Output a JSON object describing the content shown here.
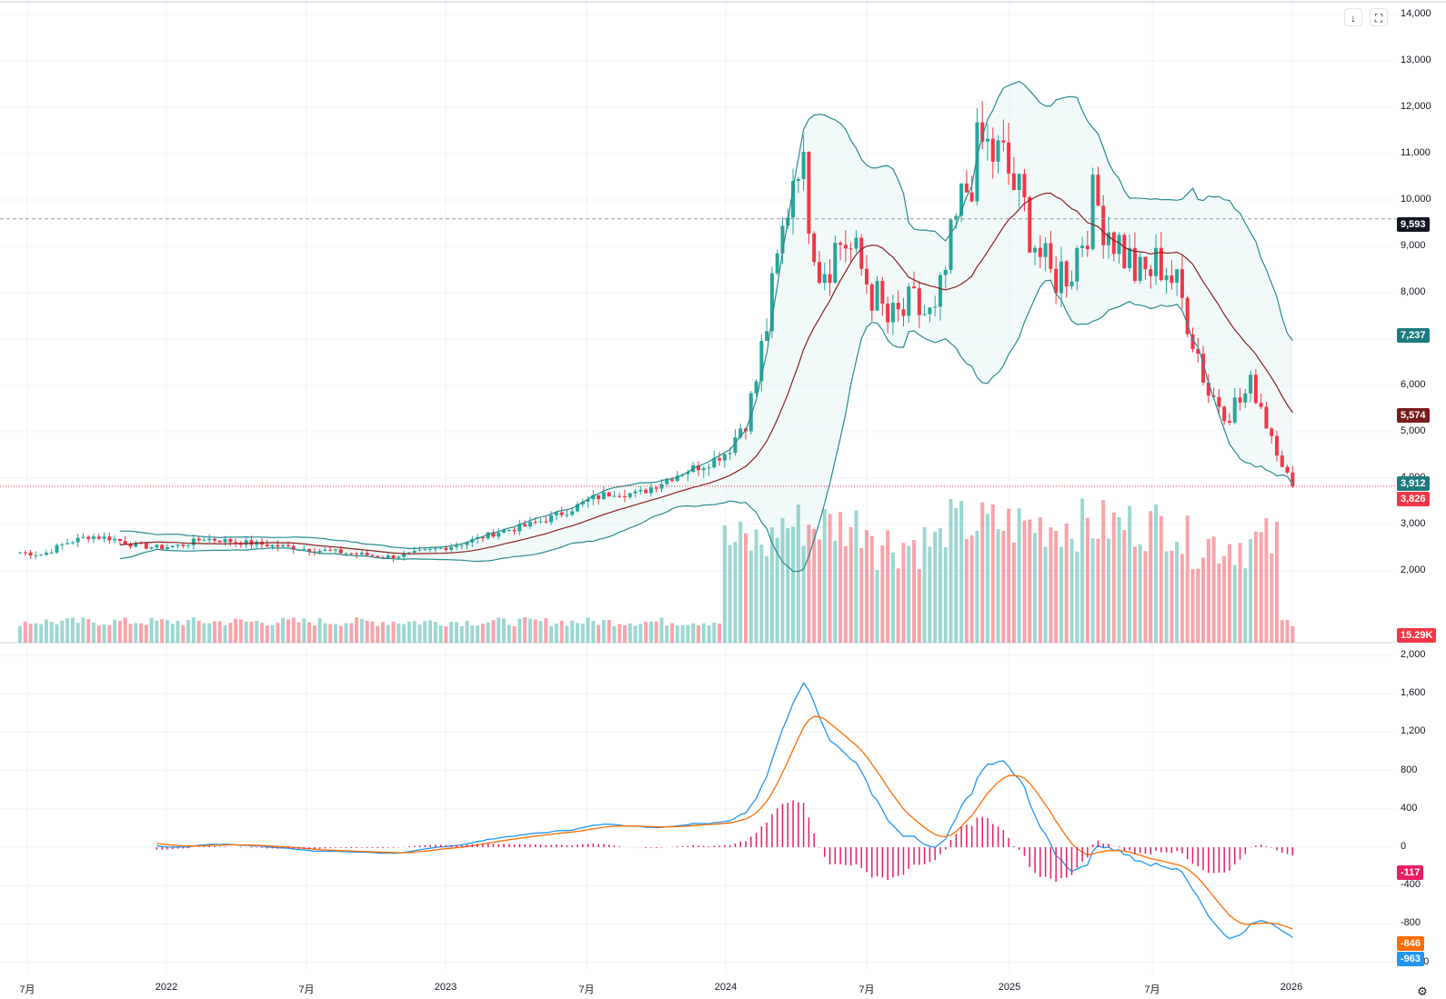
{
  "toolbar": {
    "download_icon": "↓",
    "fullscreen_icon": "⛶"
  },
  "colors": {
    "up": "#26a69a",
    "down": "#f23645",
    "bb": "#2a8a8f",
    "ma": "#8b1e1e",
    "macd": "#2196f3",
    "signal": "#ff6d00",
    "hist": "#e91e63"
  },
  "axis": {
    "price_ticks": [
      "14,000",
      "13,000",
      "12,000",
      "11,000",
      "10,000",
      "9,000",
      "8,000",
      "7,000",
      "6,000",
      "5,000",
      "4,000",
      "3,000",
      "2,000"
    ],
    "macd_ticks": [
      "2,000",
      "1,600",
      "1,200",
      "800",
      "400",
      "0",
      "-400",
      "-800",
      "-1,200"
    ],
    "time_labels": [
      "7月",
      "2022",
      "7月",
      "2023",
      "7月",
      "2024",
      "7月",
      "2025",
      "7月",
      "2026"
    ]
  },
  "tags": {
    "dashed_level": "9,593",
    "bb_upper": "7,237",
    "ma": "5,574",
    "bb_lower": "3,912",
    "last_price": "3,826",
    "volume": "15.29K",
    "macd_hist": "-117",
    "signal": "-846",
    "macd": "-963"
  },
  "chart_data": {
    "type": "candlestick",
    "frequency": "weekly",
    "price_range": [
      1000,
      14000
    ],
    "reference_level": 9593,
    "last_price": 3826,
    "close_series": [
      [
        "2021-06-01",
        2400
      ],
      [
        "2021-07-01",
        2350
      ],
      [
        "2021-08-01",
        2600
      ],
      [
        "2021-09-01",
        2750
      ],
      [
        "2021-10-01",
        2700
      ],
      [
        "2021-11-01",
        2550
      ],
      [
        "2021-12-01",
        2500
      ],
      [
        "2022-01-01",
        2550
      ],
      [
        "2022-02-01",
        2700
      ],
      [
        "2022-03-01",
        2650
      ],
      [
        "2022-04-01",
        2600
      ],
      [
        "2022-05-01",
        2550
      ],
      [
        "2022-06-01",
        2500
      ],
      [
        "2022-07-01",
        2450
      ],
      [
        "2022-08-01",
        2400
      ],
      [
        "2022-09-01",
        2350
      ],
      [
        "2022-10-01",
        2300
      ],
      [
        "2022-11-01",
        2350
      ],
      [
        "2022-12-01",
        2450
      ],
      [
        "2023-01-01",
        2550
      ],
      [
        "2023-02-01",
        2700
      ],
      [
        "2023-03-01",
        2850
      ],
      [
        "2023-04-01",
        2950
      ],
      [
        "2023-05-01",
        3100
      ],
      [
        "2023-06-01",
        3300
      ],
      [
        "2023-07-01",
        3550
      ],
      [
        "2023-08-01",
        3700
      ],
      [
        "2023-09-01",
        3650
      ],
      [
        "2023-10-01",
        3900
      ],
      [
        "2023-11-01",
        4150
      ],
      [
        "2023-12-01",
        4300
      ],
      [
        "2024-01-01",
        4600
      ],
      [
        "2024-02-01",
        5700
      ],
      [
        "2024-03-01",
        8200
      ],
      [
        "2024-04-01",
        11200
      ],
      [
        "2024-05-01",
        8500
      ],
      [
        "2024-06-01",
        9200
      ],
      [
        "2024-07-01",
        8300
      ],
      [
        "2024-08-01",
        7300
      ],
      [
        "2024-09-01",
        7700
      ],
      [
        "2024-10-01",
        7400
      ],
      [
        "2024-11-01",
        9700
      ],
      [
        "2024-12-01",
        11200
      ],
      [
        "2025-01-01",
        10800
      ],
      [
        "2025-02-01",
        9600
      ],
      [
        "2025-03-01",
        8300
      ],
      [
        "2025-04-01",
        8600
      ],
      [
        "2025-05-01",
        10000
      ],
      [
        "2025-06-01",
        9100
      ],
      [
        "2025-07-01",
        8300
      ],
      [
        "2025-08-01",
        8700
      ],
      [
        "2025-09-01",
        7600
      ],
      [
        "2025-10-01",
        5800
      ],
      [
        "2025-11-01",
        5500
      ],
      [
        "2025-12-01",
        6000
      ],
      [
        "2026-01-01",
        4500
      ],
      [
        "2026-01-20",
        3826
      ]
    ],
    "bollinger_upper_last": 7237,
    "moving_average_last": 5574,
    "bollinger_lower_last": 3912,
    "volume_last": "15.29K",
    "macd": {
      "range": [
        -1200,
        2000
      ],
      "macd_last": -963,
      "signal_last": -846,
      "histogram_last": -117,
      "macd_peaks": [
        [
          "2024-04-01",
          1780
        ],
        [
          "2025-01-01",
          1000
        ]
      ],
      "macd_troughs": [
        [
          "2025-11-01",
          -900
        ]
      ]
    }
  }
}
